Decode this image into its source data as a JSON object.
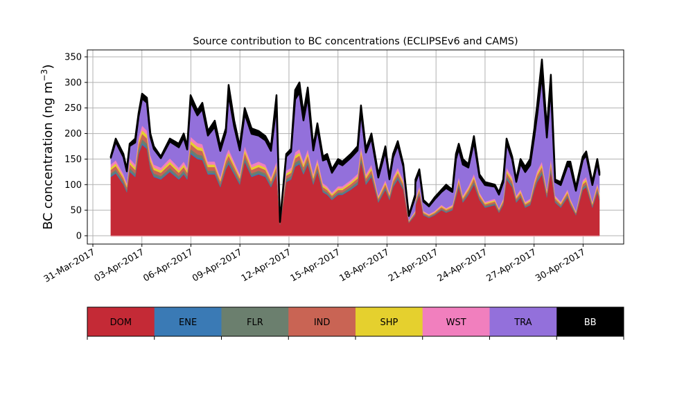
{
  "chart_data": {
    "type": "area",
    "stacked": true,
    "title": "Source contribution to BC concentrations (ECLIPSEv6 and CAMS)",
    "xlabel": "",
    "ylabel": "BC concentration (ng m",
    "ylabel_superscript": "−3",
    "ylabel_close": ")",
    "ylim": [
      -17,
      362
    ],
    "yticks": [
      0,
      50,
      100,
      150,
      200,
      250,
      300,
      350
    ],
    "x_unit": "days since 31-Mar-2017",
    "xlim": [
      -0.3,
      32.5
    ],
    "xticks": [
      0,
      3,
      6,
      9,
      12,
      15,
      18,
      21,
      24,
      27,
      30
    ],
    "xtick_labels": [
      "31-Mar-2017",
      "03-Apr-2017",
      "06-Apr-2017",
      "09-Apr-2017",
      "12-Apr-2017",
      "15-Apr-2017",
      "18-Apr-2017",
      "21-Apr-2017",
      "24-Apr-2017",
      "27-Apr-2017",
      "30-Apr-2017"
    ],
    "grid": true,
    "legend": "colorbar-bottom",
    "x": [
      1.1,
      1.4,
      1.87,
      2.08,
      2.25,
      2.59,
      2.8,
      3.01,
      3.31,
      3.52,
      3.73,
      4.16,
      4.71,
      5.26,
      5.56,
      5.77,
      5.98,
      6.4,
      6.7,
      7.04,
      7.46,
      7.8,
      8.14,
      8.31,
      8.65,
      8.99,
      9.29,
      9.71,
      10.14,
      10.56,
      10.9,
      11.24,
      11.45,
      11.83,
      12.13,
      12.38,
      12.64,
      12.89,
      13.15,
      13.49,
      13.74,
      14.08,
      14.34,
      14.63,
      15.01,
      15.27,
      15.78,
      16.2,
      16.41,
      16.71,
      17.05,
      17.47,
      17.9,
      18.15,
      18.37,
      18.66,
      19.0,
      19.34,
      19.72,
      19.98,
      19.74,
      20.23,
      20.57,
      20.91,
      21.33,
      21.62,
      22.0,
      22.22,
      22.39,
      22.64,
      22.98,
      23.32,
      23.66,
      24.0,
      24.6,
      24.85,
      25.11,
      25.32,
      25.66,
      25.91,
      26.17,
      26.46,
      26.76,
      27.02,
      27.19,
      27.48,
      27.78,
      28.03,
      28.29,
      28.63,
      29.05,
      29.22,
      29.56,
      29.98,
      30.19,
      30.57,
      30.87,
      31.0
    ],
    "total": [
      155,
      190,
      160,
      130,
      180,
      190,
      240,
      278,
      270,
      200,
      175,
      155,
      190,
      180,
      200,
      175,
      275,
      245,
      260,
      205,
      225,
      175,
      210,
      295,
      225,
      175,
      250,
      210,
      205,
      195,
      175,
      275,
      25,
      160,
      170,
      285,
      300,
      240,
      290,
      175,
      220,
      155,
      160,
      130,
      150,
      145,
      160,
      175,
      255,
      170,
      200,
      120,
      175,
      115,
      160,
      185,
      140,
      40,
      80,
      130,
      110,
      70,
      60,
      75,
      90,
      100,
      90,
      160,
      180,
      150,
      140,
      195,
      120,
      105,
      100,
      85,
      110,
      190,
      155,
      110,
      150,
      135,
      150,
      210,
      255,
      345,
      210,
      315,
      110,
      105,
      145,
      145,
      95,
      155,
      165,
      105,
      150,
      125
    ],
    "series": [
      {
        "name": "DOM",
        "color": "#c42a36",
        "values": [
          115,
          122,
          100,
          85,
          125,
          115,
          160,
          178,
          170,
          130,
          115,
          110,
          125,
          110,
          120,
          110,
          160,
          150,
          148,
          120,
          120,
          95,
          130,
          140,
          120,
          100,
          145,
          115,
          120,
          115,
          95,
          120,
          22,
          105,
          110,
          135,
          140,
          120,
          140,
          100,
          125,
          85,
          80,
          70,
          80,
          80,
          90,
          100,
          145,
          100,
          115,
          65,
          90,
          70,
          95,
          110,
          90,
          25,
          40,
          80,
          60,
          40,
          35,
          40,
          50,
          45,
          50,
          75,
          95,
          65,
          80,
          100,
          70,
          55,
          60,
          45,
          60,
          110,
          95,
          65,
          75,
          55,
          60,
          90,
          105,
          120,
          75,
          125,
          65,
          55,
          75,
          60,
          40,
          90,
          95,
          55,
          85,
          70
        ]
      },
      {
        "name": "ENE",
        "color": "#3a7ab5",
        "fraction_of_DOM": 0.02
      },
      {
        "name": "FLR",
        "color": "#6b7f6e",
        "fraction_of_DOM": 0.04
      },
      {
        "name": "IND",
        "color": "#c96454",
        "fraction_of_DOM": 0.06
      },
      {
        "name": "SHP",
        "color": "#e5d02e",
        "fraction_of_DOM": 0.04
      },
      {
        "name": "WST",
        "color": "#f17fbe",
        "fraction_of_DOM": 0.05
      },
      {
        "name": "TRA",
        "color": "#9370db",
        "fraction_of_remainder": 0.85
      },
      {
        "name": "BB",
        "color": "#000000",
        "fraction_of_remainder": 0.15
      }
    ],
    "colorbar": {
      "labels": [
        "DOM",
        "ENE",
        "FLR",
        "IND",
        "SHP",
        "WST",
        "TRA",
        "BB"
      ],
      "colors": [
        "#c42a36",
        "#3a7ab5",
        "#6b7f6e",
        "#c96454",
        "#e5d02e",
        "#f17fbe",
        "#9370db",
        "#000000"
      ],
      "label_colors": [
        "#000000",
        "#000000",
        "#000000",
        "#000000",
        "#000000",
        "#000000",
        "#000000",
        "#ffffff"
      ]
    }
  }
}
